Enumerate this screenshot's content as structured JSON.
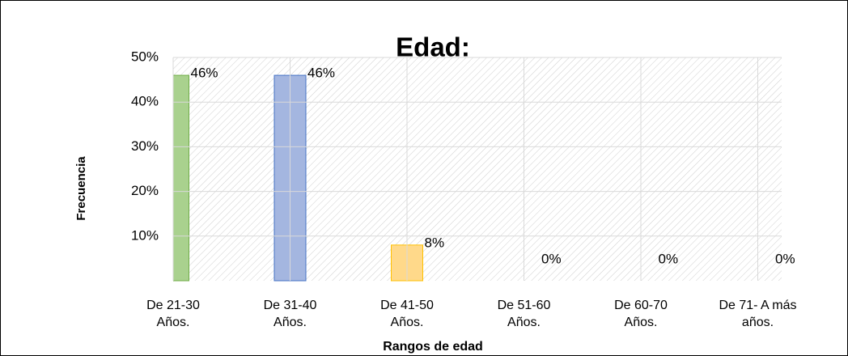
{
  "chart_data": {
    "type": "bar",
    "title": "Edad:",
    "x_label": "Rangos de edad",
    "y_label": "Frecuencia",
    "categories": [
      "De 21-30 Años.",
      "De 31-40 Años.",
      "De 41-50 Años.",
      "De 51-60 Años.",
      "De 60-70 Años.",
      "De 71- A más años."
    ],
    "values": [
      46,
      46,
      8,
      0,
      0,
      0
    ],
    "value_labels": [
      "46%",
      "46%",
      "8%",
      "0%",
      "0%",
      "0%"
    ],
    "colors": [
      "#a9d18e",
      "#a4b6e0",
      "#ffd98a",
      "#c9c9c9",
      "#c9c9c9",
      "#c9c9c9"
    ],
    "ylim": [
      0,
      50
    ],
    "yticks": [
      {
        "value": 10,
        "label": "10%"
      },
      {
        "value": 20,
        "label": "20%"
      },
      {
        "value": 30,
        "label": "30%"
      },
      {
        "value": 40,
        "label": "40%"
      },
      {
        "value": 50,
        "label": "50%"
      }
    ],
    "grid": true
  }
}
